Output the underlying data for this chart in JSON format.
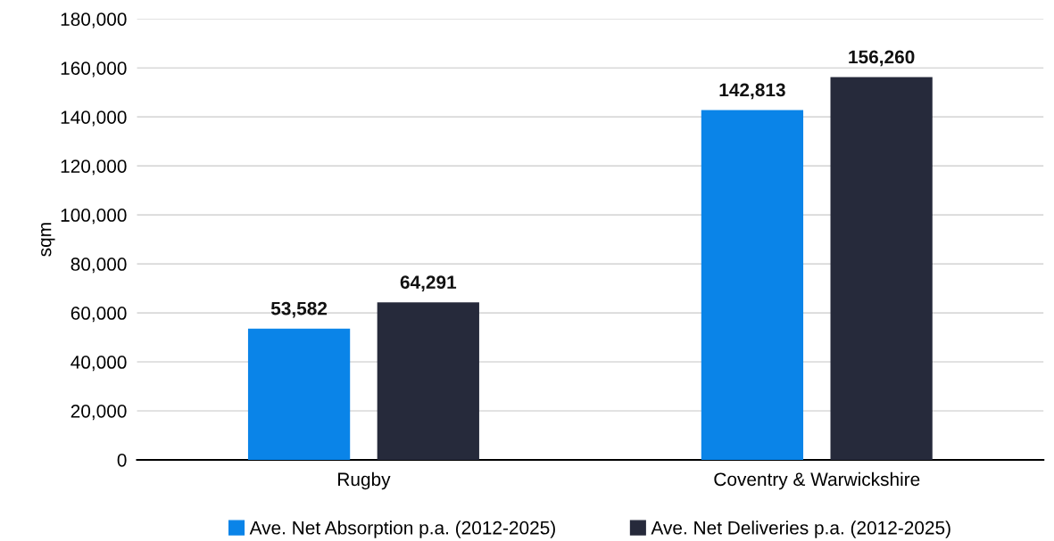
{
  "chart_data": {
    "type": "bar",
    "ylabel": "sqm",
    "categories": [
      "Rugby",
      "Coventry & Warwickshire"
    ],
    "series": [
      {
        "name": "Ave. Net Absorption p.a. (2012-2025)",
        "color": "#0a84e8",
        "values": [
          53582,
          142813
        ],
        "value_labels": [
          "53,582",
          "142,813"
        ]
      },
      {
        "name": "Ave. Net Deliveries p.a. (2012-2025)",
        "color": "#262a3b",
        "values": [
          64291,
          156260
        ],
        "value_labels": [
          "64,291",
          "156,260"
        ]
      }
    ],
    "ylim": [
      0,
      180000
    ],
    "yticks": [
      0,
      {
        "value": 20000,
        "label": "20,000"
      },
      {
        "value": 40000,
        "label": "40,000"
      },
      {
        "value": 60000,
        "label": "60,000"
      },
      {
        "value": 80000,
        "label": "80,000"
      },
      {
        "value": 100000,
        "label": "100,000"
      },
      {
        "value": 120000,
        "label": "120,000"
      },
      {
        "value": 140000,
        "label": "140,000"
      },
      {
        "value": 160000,
        "label": "160,000"
      },
      {
        "value": 180000,
        "label": "180,000"
      }
    ],
    "grid": "y",
    "legend": "bottom"
  }
}
